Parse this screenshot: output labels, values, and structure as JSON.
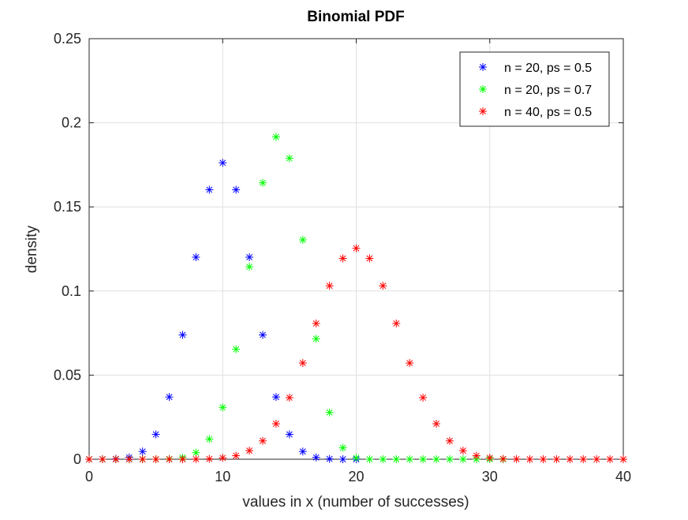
{
  "chart_data": {
    "type": "scatter",
    "title": "Binomial PDF",
    "xlabel": "values in x (number of successes)",
    "ylabel": "density",
    "xlim": [
      0,
      40
    ],
    "ylim": [
      0,
      0.25
    ],
    "xticks": [
      "0",
      "10",
      "20",
      "30",
      "40"
    ],
    "yticks": [
      "0",
      "0.05",
      "0.1",
      "0.15",
      "0.2",
      "0.25"
    ],
    "grid": true,
    "legend_position": "top-right",
    "marker": "asterisk",
    "series": [
      {
        "name": "n = 20, ps = 0.5",
        "color": "#0000ff",
        "x": [
          0,
          1,
          2,
          3,
          4,
          5,
          6,
          7,
          8,
          9,
          10,
          11,
          12,
          13,
          14,
          15,
          16,
          17,
          18,
          19,
          20
        ],
        "y": [
          0.0,
          0.0,
          0.0002,
          0.0011,
          0.0046,
          0.0148,
          0.037,
          0.0739,
          0.1201,
          0.1602,
          0.1762,
          0.1602,
          0.1201,
          0.0739,
          0.037,
          0.0148,
          0.0046,
          0.0011,
          0.0002,
          0.0,
          0.0
        ]
      },
      {
        "name": "n = 20, ps = 0.7",
        "color": "#00ff00",
        "x": [
          0,
          1,
          2,
          3,
          4,
          5,
          6,
          7,
          8,
          9,
          10,
          11,
          12,
          13,
          14,
          15,
          16,
          17,
          18,
          19,
          20,
          21,
          22,
          23,
          24,
          25,
          26,
          27,
          28,
          29,
          30,
          31
        ],
        "y": [
          0.0,
          0.0,
          0.0,
          0.0,
          0.0,
          0.0,
          0.0002,
          0.001,
          0.0039,
          0.012,
          0.0308,
          0.0654,
          0.1144,
          0.1643,
          0.1916,
          0.1789,
          0.1304,
          0.0716,
          0.0278,
          0.0068,
          0.0008,
          0,
          0,
          0,
          0,
          0,
          0,
          0,
          0,
          0,
          0,
          0
        ]
      },
      {
        "name": "n = 40, ps = 0.5",
        "color": "#ff0000",
        "x": [
          0,
          1,
          2,
          3,
          4,
          5,
          6,
          7,
          8,
          9,
          10,
          11,
          12,
          13,
          14,
          15,
          16,
          17,
          18,
          19,
          20,
          21,
          22,
          23,
          24,
          25,
          26,
          27,
          28,
          29,
          30,
          31,
          32,
          33,
          34,
          35,
          36,
          37,
          38,
          39,
          40
        ],
        "y": [
          0.0,
          0.0,
          0.0,
          0.0,
          0.0,
          0.0,
          0.0,
          0.0,
          0.0001,
          0.0002,
          0.0008,
          0.0021,
          0.0051,
          0.0109,
          0.0211,
          0.0366,
          0.0572,
          0.0807,
          0.1031,
          0.1194,
          0.1254,
          0.1194,
          0.1031,
          0.0807,
          0.0572,
          0.0366,
          0.0211,
          0.0109,
          0.0051,
          0.0021,
          0.0008,
          0.0002,
          0.0001,
          0.0,
          0.0,
          0.0,
          0.0,
          0.0,
          0.0,
          0.0,
          0.0
        ]
      }
    ]
  }
}
